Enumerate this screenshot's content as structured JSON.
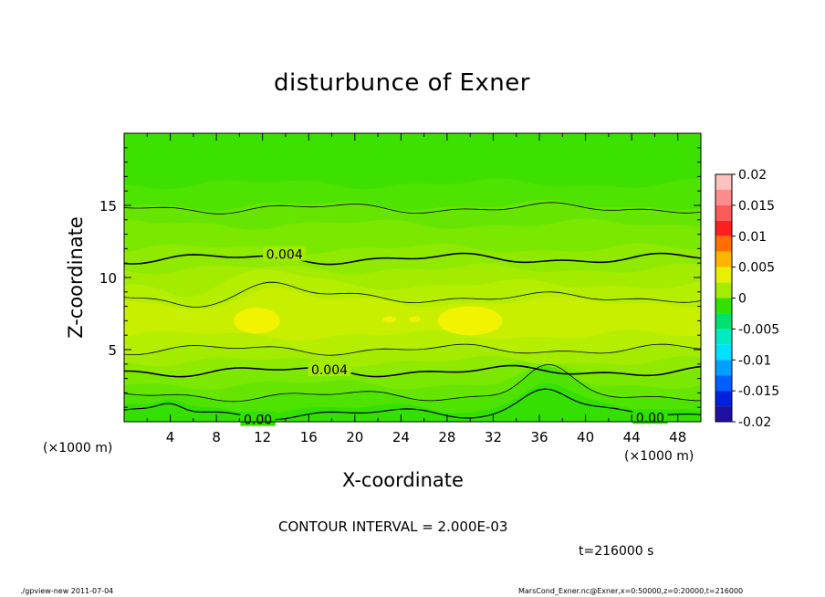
{
  "chart_data": {
    "type": "heatmap",
    "title": "disturbunce of Exner",
    "xlabel": "X-coordinate",
    "ylabel": "Z-coordinate",
    "x_unit_left": "(×1000 m)",
    "x_unit_right": "(×1000 m)",
    "xlim": [
      0,
      50
    ],
    "ylim": [
      0,
      20
    ],
    "x_ticks": [
      "4",
      "8",
      "12",
      "16",
      "20",
      "24",
      "28",
      "32",
      "36",
      "40",
      "44",
      "48"
    ],
    "y_ticks": [
      "5",
      "10",
      "15"
    ],
    "colorbar": {
      "labels": [
        "0.02",
        "0.015",
        "0.01",
        "0.005",
        "0",
        "-0.005",
        "-0.01",
        "-0.015",
        "-0.02"
      ],
      "min": -0.02,
      "max": 0.02,
      "levels": [
        {
          "v": 0.02,
          "color": "#ffc0c0"
        },
        {
          "v": 0.0175,
          "color": "#ff8c8c"
        },
        {
          "v": 0.015,
          "color": "#ff5a5a"
        },
        {
          "v": 0.0125,
          "color": "#ff1f1f"
        },
        {
          "v": 0.01,
          "color": "#ff7000"
        },
        {
          "v": 0.0075,
          "color": "#ffb400"
        },
        {
          "v": 0.005,
          "color": "#e8ef00"
        },
        {
          "v": 0.0025,
          "color": "#a6ec00"
        },
        {
          "v": 0.0,
          "color": "#33e000"
        },
        {
          "v": -0.0025,
          "color": "#00e070"
        },
        {
          "v": -0.005,
          "color": "#00ecc0"
        },
        {
          "v": -0.0075,
          "color": "#00e0ff"
        },
        {
          "v": -0.01,
          "color": "#00a0ff"
        },
        {
          "v": -0.0125,
          "color": "#0060ff"
        },
        {
          "v": -0.015,
          "color": "#0020e0"
        },
        {
          "v": -0.0175,
          "color": "#2010a0"
        },
        {
          "v": -0.02,
          "color": "#6a1a9a"
        }
      ]
    },
    "contour_interval": "CONTOUR INTERVAL = 2.000E-03",
    "time_label": "t=216000 s",
    "contour_labels": [
      "0.004",
      "0.004",
      "0.00",
      "0.00"
    ],
    "bands": [
      {
        "z": 0.0,
        "color": "#33e000"
      },
      {
        "z": 0.9,
        "color": "#4ee300"
      },
      {
        "z": 1.8,
        "color": "#66e500"
      },
      {
        "z": 2.6,
        "color": "#7be800"
      },
      {
        "z": 3.4,
        "color": "#8fea00"
      },
      {
        "z": 4.2,
        "color": "#a3ec00"
      },
      {
        "z": 5.0,
        "color": "#b6ee00"
      },
      {
        "z": 6.0,
        "color": "#c9ef00"
      },
      {
        "z": 8.3,
        "color": "#b6ee00"
      },
      {
        "z": 9.5,
        "color": "#a3ec00"
      },
      {
        "z": 10.6,
        "color": "#8fea00"
      },
      {
        "z": 12.0,
        "color": "#7be800"
      },
      {
        "z": 13.7,
        "color": "#66e500"
      },
      {
        "z": 15.0,
        "color": "#4ee300"
      },
      {
        "z": 16.5,
        "color": "#3de100"
      }
    ]
  },
  "footer": {
    "left": "./gpview-new   2011-07-04",
    "right": "MarsCond_Exner.nc@Exner,x=0:50000,z=0:20000,t=216000"
  }
}
